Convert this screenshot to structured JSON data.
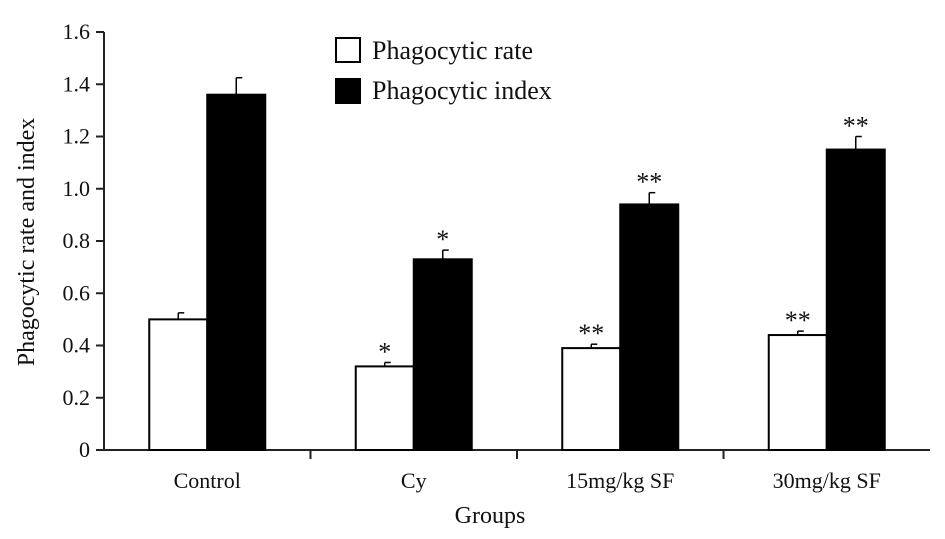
{
  "chart_data": {
    "type": "bar",
    "categories": [
      "Control",
      "Cy",
      "15mg/kg SF",
      "30mg/kg SF"
    ],
    "series": [
      {
        "name": "Phagocytic rate",
        "values": [
          0.5,
          0.32,
          0.39,
          0.44
        ],
        "errors": [
          0.025,
          0.015,
          0.015,
          0.015
        ],
        "significance": [
          "",
          "*",
          "**",
          "**"
        ],
        "fill": "#ffffff"
      },
      {
        "name": "Phagocytic index",
        "values": [
          1.36,
          0.73,
          0.94,
          1.15
        ],
        "errors": [
          0.065,
          0.035,
          0.045,
          0.05
        ],
        "significance": [
          "",
          "*",
          "**",
          "**"
        ],
        "fill": "#000000"
      }
    ],
    "xlabel": "Groups",
    "ylabel": "Phagocytic rate and index",
    "ylim": [
      0,
      1.6
    ],
    "yticks": [
      "0",
      "0.2",
      "0.4",
      "0.6",
      "0.8",
      "1.0",
      "1.2",
      "1.4",
      "1.6"
    ],
    "legend_position": "top-center",
    "grid": false
  }
}
